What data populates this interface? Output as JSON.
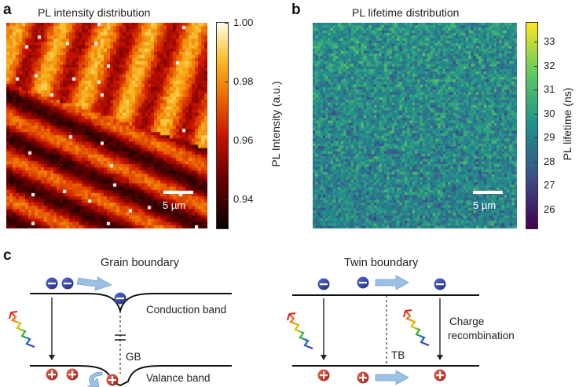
{
  "panel_a": {
    "letter": "a",
    "title": "PL intensity distribution",
    "colorbar_label": "PL Intensity (a.u.)",
    "colorbar_ticks": [
      "1.00",
      "0.98",
      "0.96",
      "0.94"
    ],
    "colorbar_range": [
      0.93,
      1.0
    ],
    "scale_bar": "5 µm"
  },
  "panel_b": {
    "letter": "b",
    "title": "PL lifetime distribution",
    "colorbar_label": "PL lifetime (ns)",
    "colorbar_ticks": [
      "33",
      "32",
      "31",
      "30",
      "29",
      "28",
      "27",
      "26"
    ],
    "colorbar_range": [
      25.2,
      33.8
    ],
    "scale_bar": "5 µm"
  },
  "panel_c": {
    "letter": "c",
    "grain": {
      "title": "Grain boundary",
      "conduction_label": "Conduction band",
      "valence_label": "Valance band",
      "boundary_label": "GB"
    },
    "twin": {
      "title": "Twin boundary",
      "boundary_label": "TB",
      "recombination_label_1": "Charge",
      "recombination_label_2": "recombination"
    }
  },
  "colors": {
    "electron": "#2a3a9c",
    "hole": "#c8261c",
    "arrow": "#8fb4dc"
  }
}
